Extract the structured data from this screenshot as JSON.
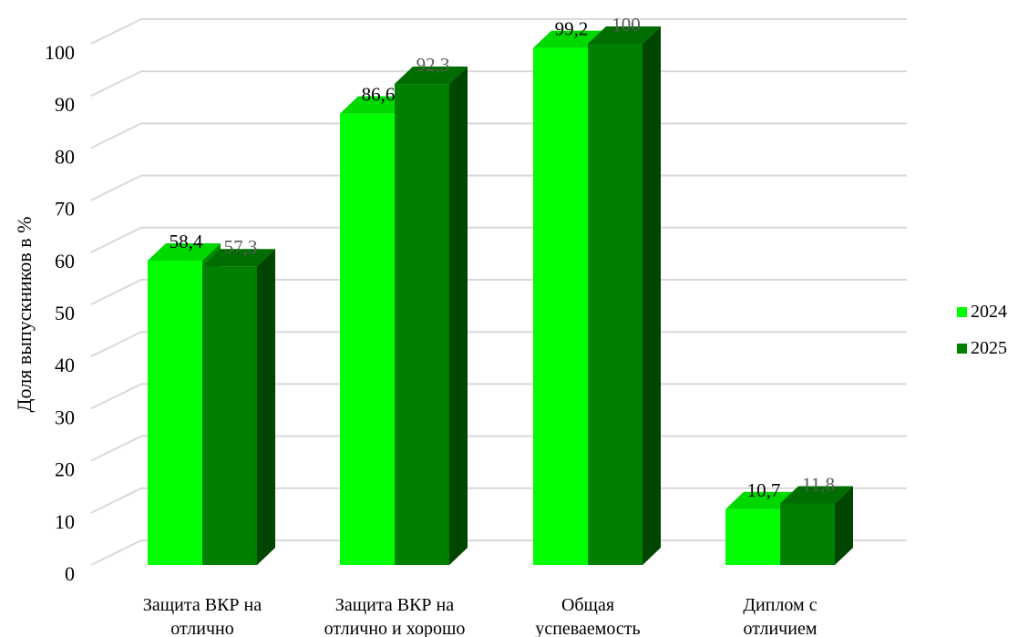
{
  "chart_data": {
    "type": "bar",
    "title": "",
    "xlabel": "",
    "ylabel": "Доля выпускников в %",
    "ylim": [
      0,
      100
    ],
    "yticks": [
      0,
      10,
      20,
      30,
      40,
      50,
      60,
      70,
      80,
      90,
      100
    ],
    "grid": true,
    "legend_position": "right",
    "categories": [
      [
        "Защита ВКР на",
        "отлично"
      ],
      [
        "Защита ВКР на",
        "отлично и хорошо"
      ],
      [
        "Общая",
        "успеваемость"
      ],
      [
        "Диплом с",
        "отличием"
      ]
    ],
    "series": [
      {
        "name": "2024",
        "values": [
          58.4,
          86.6,
          99.2,
          10.7
        ],
        "labels": [
          "58,4",
          "86,6",
          "99,2",
          "10,7"
        ],
        "color": "#00ff00",
        "label_color": "#000000"
      },
      {
        "name": "2025",
        "values": [
          57.3,
          92.3,
          100,
          11.8
        ],
        "labels": [
          "57,3",
          "92,3",
          "100",
          "11,8"
        ],
        "color": "#008000",
        "label_color": "#595959"
      }
    ]
  },
  "legend": {
    "items": [
      {
        "label": "2024",
        "color": "#00ff00"
      },
      {
        "label": "2025",
        "color": "#008000"
      }
    ]
  }
}
